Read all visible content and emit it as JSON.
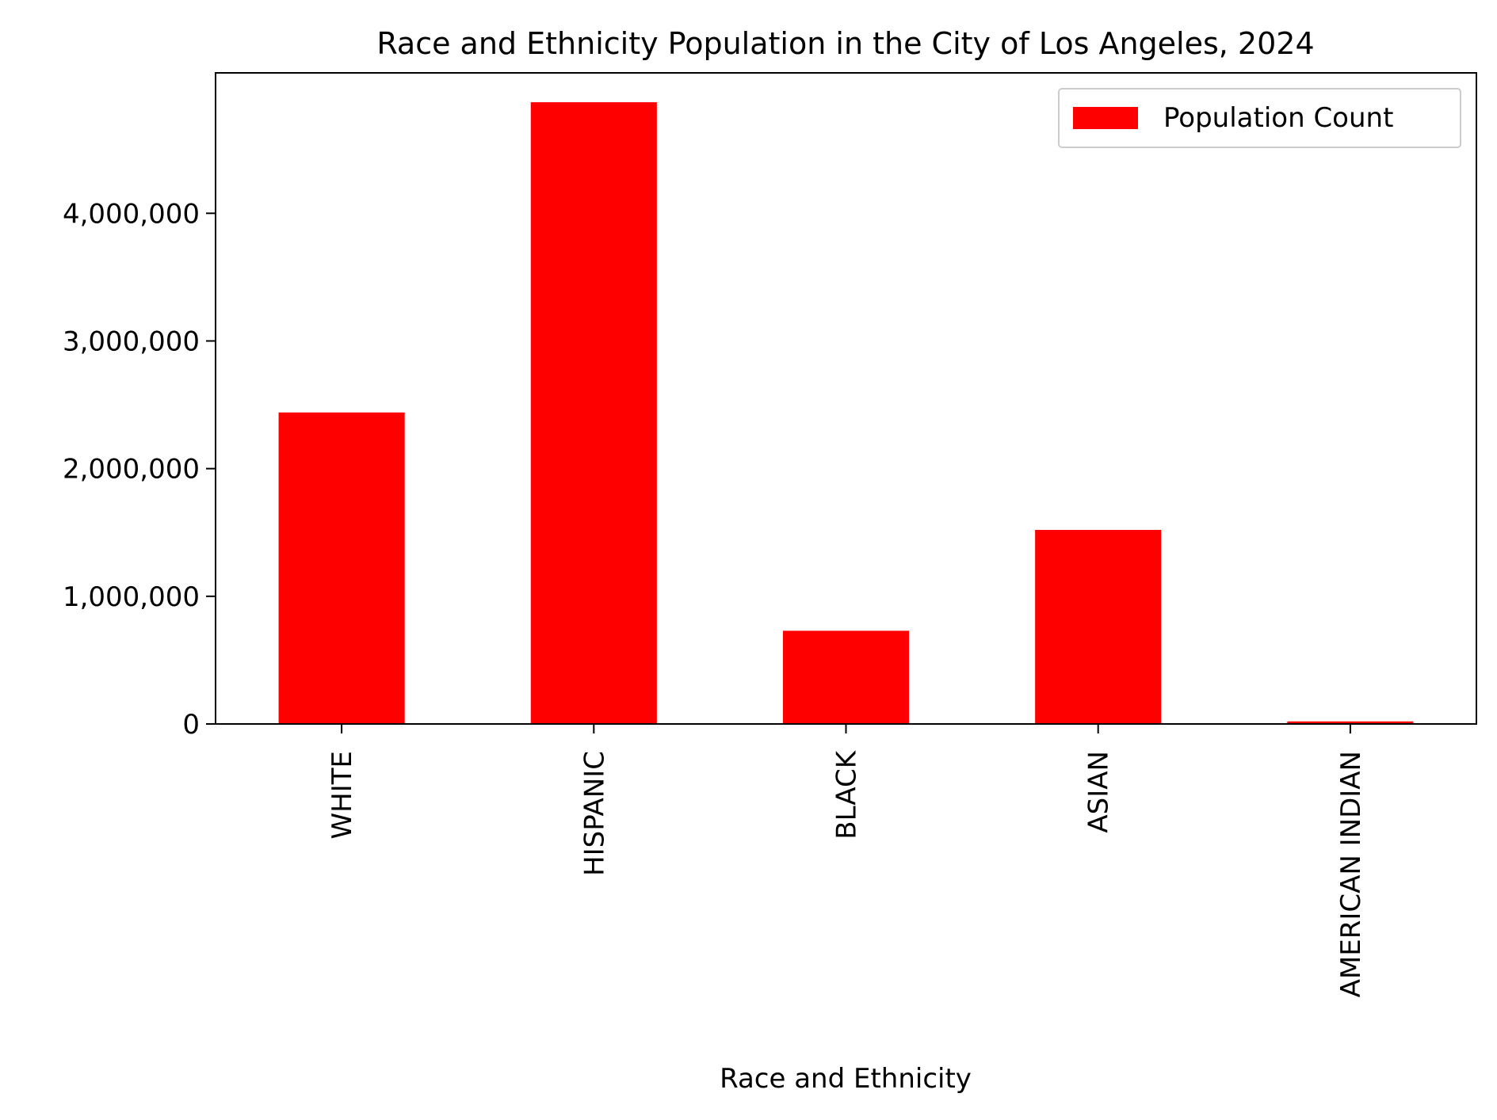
{
  "chart_data": {
    "type": "bar",
    "title": "Race and Ethnicity Population in the City of Los Angeles, 2024",
    "xlabel": "Race and Ethnicity",
    "ylabel": "",
    "categories": [
      "WHITE",
      "HISPANIC",
      "BLACK",
      "ASIAN",
      "AMERICAN INDIAN"
    ],
    "series": [
      {
        "name": "Population Count",
        "color": "#ff0000",
        "values": [
          2440000,
          4870000,
          730000,
          1520000,
          20000
        ]
      }
    ],
    "ylim": [
      0,
      5100000
    ],
    "yticks": [
      0,
      1000000,
      2000000,
      3000000,
      4000000
    ],
    "ytick_labels": [
      "0",
      "1,000,000",
      "2,000,000",
      "3,000,000",
      "4,000,000"
    ],
    "grid": false,
    "legend_position": "top-right"
  }
}
